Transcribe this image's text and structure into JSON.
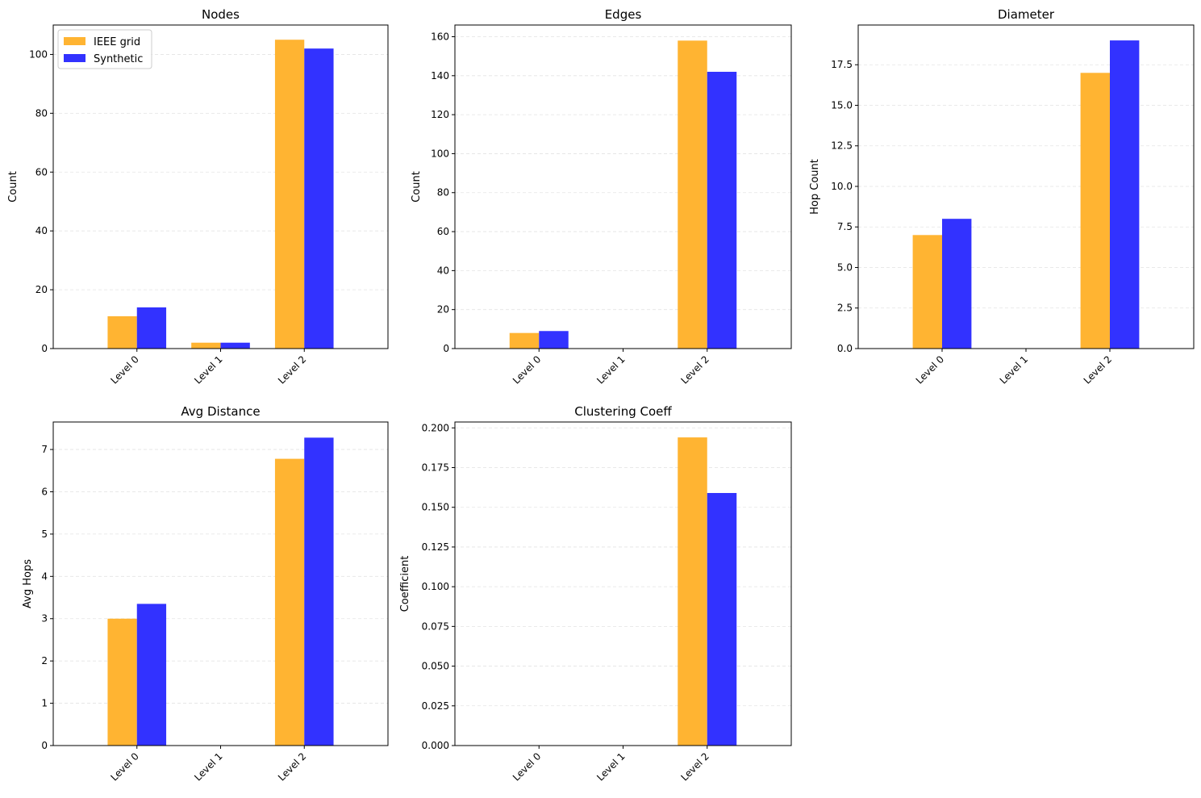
{
  "colors": {
    "ieee": "#FFB432",
    "synthetic": "#3232FF"
  },
  "legend": [
    "IEEE grid",
    "Synthetic"
  ],
  "chart_data": [
    {
      "type": "bar",
      "title": "Nodes",
      "ylabel": "Count",
      "categories": [
        "Level 0",
        "Level 1",
        "Level 2"
      ],
      "series": [
        {
          "name": "IEEE grid",
          "values": [
            11,
            2,
            105
          ]
        },
        {
          "name": "Synthetic",
          "values": [
            14,
            2,
            102
          ]
        }
      ],
      "ylim": [
        0,
        110
      ],
      "yticks": [
        0,
        20,
        40,
        60,
        80,
        100
      ],
      "grid": "y-dashed",
      "legend_position": "upper-left"
    },
    {
      "type": "bar",
      "title": "Edges",
      "ylabel": "Count",
      "categories": [
        "Level 0",
        "Level 1",
        "Level 2"
      ],
      "series": [
        {
          "name": "IEEE grid",
          "values": [
            8,
            0,
            158
          ]
        },
        {
          "name": "Synthetic",
          "values": [
            9,
            0,
            142
          ]
        }
      ],
      "ylim": [
        0,
        166
      ],
      "yticks": [
        0,
        20,
        40,
        60,
        80,
        100,
        120,
        140,
        160
      ],
      "grid": "y-dashed"
    },
    {
      "type": "bar",
      "title": "Diameter",
      "ylabel": "Hop Count",
      "categories": [
        "Level 0",
        "Level 1",
        "Level 2"
      ],
      "series": [
        {
          "name": "IEEE grid",
          "values": [
            7,
            0,
            17
          ]
        },
        {
          "name": "Synthetic",
          "values": [
            8,
            0,
            19
          ]
        }
      ],
      "ylim": [
        0,
        19.95
      ],
      "yticks": [
        0,
        2.5,
        5,
        7.5,
        10,
        12.5,
        15,
        17.5
      ],
      "ytick_labels": [
        "0.0",
        "2.5",
        "5.0",
        "7.5",
        "10.0",
        "12.5",
        "15.0",
        "17.5"
      ],
      "grid": "y-dashed"
    },
    {
      "type": "bar",
      "title": "Avg Distance",
      "ylabel": "Avg Hops",
      "categories": [
        "Level 0",
        "Level 1",
        "Level 2"
      ],
      "series": [
        {
          "name": "IEEE grid",
          "values": [
            3.0,
            0,
            6.78
          ]
        },
        {
          "name": "Synthetic",
          "values": [
            3.35,
            0,
            7.28
          ]
        }
      ],
      "ylim": [
        0,
        7.65
      ],
      "yticks": [
        0,
        1,
        2,
        3,
        4,
        5,
        6,
        7
      ],
      "grid": "y-dashed"
    },
    {
      "type": "bar",
      "title": "Clustering Coeff",
      "ylabel": "Coefficient",
      "categories": [
        "Level 0",
        "Level 1",
        "Level 2"
      ],
      "series": [
        {
          "name": "IEEE grid",
          "values": [
            0,
            0,
            0.194
          ]
        },
        {
          "name": "Synthetic",
          "values": [
            0,
            0,
            0.159
          ]
        }
      ],
      "ylim": [
        0,
        0.2037
      ],
      "yticks": [
        0,
        0.025,
        0.05,
        0.075,
        0.1,
        0.125,
        0.15,
        0.175,
        0.2
      ],
      "ytick_labels": [
        "0.000",
        "0.025",
        "0.050",
        "0.075",
        "0.100",
        "0.125",
        "0.150",
        "0.175",
        "0.200"
      ],
      "grid": "y-dashed"
    }
  ]
}
